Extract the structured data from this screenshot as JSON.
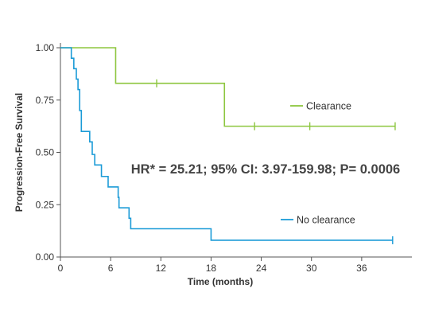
{
  "chart_data": {
    "type": "line",
    "subtype": "kaplan-meier-step",
    "title": "",
    "xlabel": "Time (months)",
    "ylabel": "Progression-Free Survival",
    "xlim": [
      0,
      42
    ],
    "ylim": [
      0,
      1
    ],
    "xticks": [
      0,
      6,
      12,
      18,
      24,
      30,
      36
    ],
    "xtick_labels": [
      "0",
      "6",
      "12",
      "18",
      "24",
      "30",
      "36"
    ],
    "yticks": [
      0,
      0.25,
      0.5,
      0.75,
      1
    ],
    "ytick_labels": [
      "0.00",
      "0.25",
      "0.50",
      "0.75",
      "1.00"
    ],
    "grid": false,
    "annotation": "HR* = 25.21; 95% CI: 3.97-159.98; P= 0.0006",
    "series": [
      {
        "name": "Clearance",
        "color": "#8dc63f",
        "legend_position": "right-middle",
        "steps": [
          {
            "x": 0,
            "y": 1.0
          },
          {
            "x": 6.6,
            "y": 0.83
          },
          {
            "x": 19.6,
            "y": 0.625
          }
        ],
        "end_x": 40,
        "censored": [
          {
            "x": 11.5,
            "y": 0.83
          },
          {
            "x": 23.2,
            "y": 0.625
          },
          {
            "x": 29.8,
            "y": 0.625
          },
          {
            "x": 40,
            "y": 0.625
          }
        ]
      },
      {
        "name": "No clearance",
        "color": "#1b9bd7",
        "legend_position": "right-lower",
        "steps": [
          {
            "x": 0,
            "y": 1.0
          },
          {
            "x": 1.3,
            "y": 0.95
          },
          {
            "x": 1.6,
            "y": 0.9
          },
          {
            "x": 1.9,
            "y": 0.85
          },
          {
            "x": 2.1,
            "y": 0.8
          },
          {
            "x": 2.3,
            "y": 0.7
          },
          {
            "x": 2.5,
            "y": 0.6
          },
          {
            "x": 3.5,
            "y": 0.55
          },
          {
            "x": 3.8,
            "y": 0.49
          },
          {
            "x": 4.1,
            "y": 0.44
          },
          {
            "x": 4.9,
            "y": 0.385
          },
          {
            "x": 5.7,
            "y": 0.335
          },
          {
            "x": 6.9,
            "y": 0.285
          },
          {
            "x": 7.0,
            "y": 0.235
          },
          {
            "x": 8.2,
            "y": 0.185
          },
          {
            "x": 8.4,
            "y": 0.135
          },
          {
            "x": 18.0,
            "y": 0.08
          }
        ],
        "end_x": 39.7,
        "censored": [
          {
            "x": 39.7,
            "y": 0.08
          }
        ]
      }
    ]
  }
}
